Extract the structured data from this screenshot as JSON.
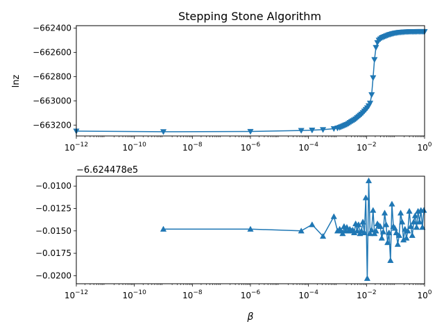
{
  "chart_data": [
    {
      "type": "line",
      "title": "Stepping Stone Algorithm",
      "xlabel": "",
      "ylabel": "lnz",
      "xscale": "log",
      "xlim": [
        1e-12,
        1
      ],
      "ylim": [
        -663290,
        -662380
      ],
      "marker": "triangle-down",
      "color": "#1f77b4",
      "grid": false,
      "x_ticks": [
        "10^-12",
        "10^-10",
        "10^-8",
        "10^-6",
        "10^-4",
        "10^-2",
        "10^0"
      ],
      "y_ticks": [
        -663200,
        -663000,
        -662800,
        -662600,
        -662400
      ],
      "y_tick_labels": [
        "−663200",
        "−663000",
        "−662800",
        "−662600",
        "−662400"
      ],
      "series": [
        {
          "x": [
            1e-12,
            1e-09,
            1e-06,
            5.62e-05,
            0.000133,
            0.000316,
            0.00075,
            0.001,
            0.00119,
            0.00133,
            0.0015,
            0.00168,
            0.00188,
            0.0021,
            0.00237,
            0.00266,
            0.00298,
            0.00335,
            0.00376,
            0.00422,
            0.00473,
            0.00531,
            0.00596,
            0.00668,
            0.0075,
            0.00841,
            0.00944,
            0.0106,
            0.0119,
            0.0133,
            0.015,
            0.0168,
            0.0188,
            0.0211,
            0.0237,
            0.0266,
            0.0298,
            0.0335,
            0.0376,
            0.0422,
            0.0473,
            0.0531,
            0.0596,
            0.0668,
            0.075,
            0.0841,
            0.0944,
            0.106,
            0.119,
            0.133,
            0.15,
            0.168,
            0.188,
            0.211,
            0.237,
            0.266,
            0.298,
            0.335,
            0.376,
            0.422,
            0.473,
            0.531,
            0.596,
            0.668,
            0.75,
            0.841,
            0.944,
            1.0
          ],
          "y": [
            -663250,
            -663255,
            -663253,
            -663245,
            -663242,
            -663238,
            -663230,
            -663225,
            -663220,
            -663215,
            -663210,
            -663205,
            -663200,
            -663195,
            -663188,
            -663180,
            -663172,
            -663165,
            -663158,
            -663150,
            -663140,
            -663130,
            -663120,
            -663110,
            -663098,
            -663085,
            -663072,
            -663058,
            -663042,
            -663020,
            -662950,
            -662810,
            -662660,
            -662560,
            -662520,
            -662500,
            -662490,
            -662480,
            -662475,
            -662470,
            -662465,
            -662460,
            -662455,
            -662452,
            -662448,
            -662445,
            -662442,
            -662440,
            -662438,
            -662436,
            -662435,
            -662434,
            -662433,
            -662432,
            -662431,
            -662431,
            -662430,
            -662430,
            -662430,
            -662430,
            -662430,
            -662429,
            -662429,
            -662429,
            -662429,
            -662429,
            -662429,
            -662429
          ]
        }
      ]
    },
    {
      "type": "line",
      "xlabel": "β",
      "ylabel": "",
      "offset_label": "−6.624478e5",
      "xscale": "log",
      "xlim": [
        1e-12,
        1
      ],
      "ylim": [
        -0.0209,
        -0.0089
      ],
      "marker": "triangle-up",
      "color": "#1f77b4",
      "grid": false,
      "x_ticks": [
        "10^-12",
        "10^-10",
        "10^-8",
        "10^-6",
        "10^-4",
        "10^-2",
        "10^0"
      ],
      "y_ticks": [
        -0.02,
        -0.0175,
        -0.015,
        -0.0125,
        -0.01
      ],
      "y_tick_labels": [
        "−0.0200",
        "−0.0175",
        "−0.0150",
        "−0.0125",
        "−0.0100"
      ],
      "series": [
        {
          "x": [
            1e-09,
            1e-06,
            5.62e-05,
            0.000133,
            0.000316,
            0.00075,
            0.001,
            0.00119,
            0.00133,
            0.0015,
            0.00168,
            0.00188,
            0.0021,
            0.00237,
            0.00266,
            0.00298,
            0.00335,
            0.00376,
            0.00422,
            0.00473,
            0.00531,
            0.00596,
            0.00668,
            0.0075,
            0.00841,
            0.00944,
            0.0106,
            0.0119,
            0.0133,
            0.015,
            0.0168,
            0.0188,
            0.0211,
            0.0237,
            0.0266,
            0.0298,
            0.0335,
            0.0376,
            0.0422,
            0.0473,
            0.0531,
            0.0596,
            0.0668,
            0.075,
            0.0841,
            0.0944,
            0.106,
            0.119,
            0.133,
            0.15,
            0.168,
            0.188,
            0.211,
            0.237,
            0.266,
            0.298,
            0.335,
            0.376,
            0.422,
            0.473,
            0.531,
            0.596,
            0.668,
            0.75,
            0.841,
            0.944
          ],
          "y": [
            -0.0148,
            -0.0148,
            -0.015,
            -0.0143,
            -0.0156,
            -0.0134,
            -0.015,
            -0.0148,
            -0.015,
            -0.0153,
            -0.0145,
            -0.015,
            -0.0146,
            -0.015,
            -0.0148,
            -0.015,
            -0.0149,
            -0.0152,
            -0.0142,
            -0.015,
            -0.0143,
            -0.0153,
            -0.015,
            -0.014,
            -0.0152,
            -0.0113,
            -0.0203,
            -0.0094,
            -0.0153,
            -0.0149,
            -0.0127,
            -0.0153,
            -0.015,
            -0.0142,
            -0.0144,
            -0.0145,
            -0.0158,
            -0.0151,
            -0.013,
            -0.0143,
            -0.0163,
            -0.0152,
            -0.0183,
            -0.012,
            -0.0145,
            -0.0147,
            -0.0152,
            -0.0165,
            -0.0155,
            -0.013,
            -0.014,
            -0.016,
            -0.0148,
            -0.0158,
            -0.015,
            -0.0128,
            -0.0145,
            -0.0155,
            -0.014,
            -0.0133,
            -0.0146,
            -0.0128,
            -0.014,
            -0.0127,
            -0.0146,
            -0.0127
          ]
        }
      ]
    }
  ]
}
